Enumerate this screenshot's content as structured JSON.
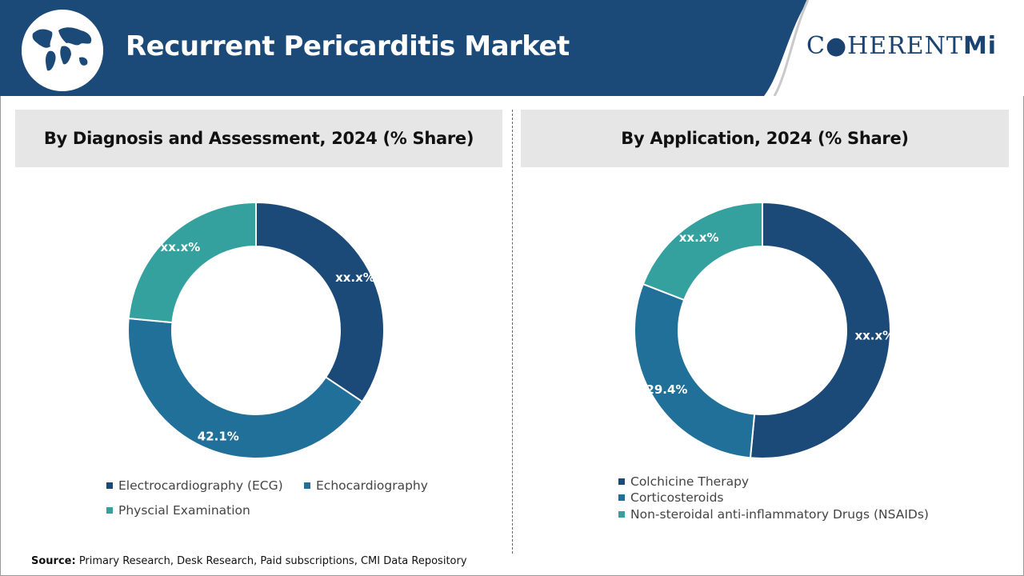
{
  "header": {
    "title": "Recurrent Pericarditis Market",
    "logo_text": "C●HERENT",
    "logo_text_mi": "Mi",
    "bar_color": "#1b4a78"
  },
  "colors": {
    "navy": "#1b4a78",
    "blue": "#217099",
    "teal": "#35a19f"
  },
  "chart_data": [
    {
      "type": "pie",
      "donut": true,
      "title": "By Diagnosis and Assessment, 2024 (% Share)",
      "categories": [
        "Electrocardiography (ECG)",
        "Echocardiography",
        "Physcial Examination"
      ],
      "values": [
        34.4,
        42.1,
        23.5
      ],
      "labels": [
        "xx.x%",
        "42.1%",
        "xx.x%"
      ],
      "colors": [
        "#1b4a78",
        "#217099",
        "#35a19f"
      ],
      "legend_position": "bottom"
    },
    {
      "type": "pie",
      "donut": true,
      "title": "By Application, 2024 (% Share)",
      "categories": [
        "Colchicine Therapy",
        "Corticosteroids",
        "Non-steroidal anti-inflammatory Drugs (NSAIDs)"
      ],
      "values": [
        51.5,
        29.4,
        19.1
      ],
      "labels": [
        "xx.x%",
        "29.4%",
        "xx.x%"
      ],
      "colors": [
        "#1b4a78",
        "#217099",
        "#35a19f"
      ],
      "legend_position": "bottom"
    }
  ],
  "source": {
    "label": "Source:",
    "text": " Primary Research, Desk Research, Paid subscriptions, CMI Data Repository"
  }
}
